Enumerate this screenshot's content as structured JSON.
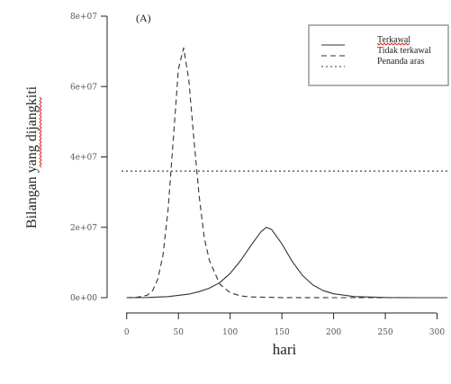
{
  "chart_data": {
    "type": "line",
    "panel_label": "(A)",
    "xlabel": "hari",
    "ylabel": "Bilangan yang dijangkiti",
    "xlim": [
      -5,
      310
    ],
    "ylim": [
      0,
      80000000
    ],
    "x_ticks": [
      0,
      50,
      100,
      150,
      200,
      250,
      300
    ],
    "x_tick_labels": [
      "0",
      "50",
      "100",
      "150",
      "200",
      "250",
      "300"
    ],
    "y_ticks": [
      0,
      20000000,
      40000000,
      60000000,
      80000000
    ],
    "y_tick_labels": [
      "0e+00",
      "2e+07",
      "4e+07",
      "6e+07",
      "8e+07"
    ],
    "legend_position": "top-right",
    "series": [
      {
        "name": "Terkawal",
        "style": "solid",
        "x": [
          0,
          20,
          40,
          60,
          70,
          80,
          90,
          100,
          110,
          120,
          130,
          135,
          140,
          150,
          160,
          170,
          180,
          190,
          200,
          220,
          250,
          280,
          310
        ],
        "values": [
          0,
          50000,
          300000,
          1000000,
          1700000,
          2700000,
          4300000,
          6900000,
          10500000,
          14800000,
          18800000,
          20000000,
          19400000,
          15300000,
          10300000,
          6300000,
          3600000,
          2000000,
          1100000,
          300000,
          50000,
          10000,
          0
        ]
      },
      {
        "name": "Tidak terkawal",
        "style": "dashed",
        "x": [
          0,
          10,
          20,
          25,
          30,
          35,
          40,
          45,
          50,
          55,
          60,
          65,
          70,
          75,
          80,
          90,
          100,
          110,
          120,
          150,
          200,
          250,
          310
        ],
        "values": [
          0,
          100000,
          700000,
          2000000,
          5200000,
          12000000,
          25000000,
          45000000,
          65000000,
          71000000,
          62000000,
          45000000,
          29000000,
          17000000,
          10500000,
          3800000,
          1400000,
          500000,
          200000,
          20000,
          0,
          0,
          0
        ]
      },
      {
        "name": "Penanda aras",
        "style": "dotted",
        "x": [
          -5,
          310
        ],
        "values": [
          36000000,
          36000000
        ]
      }
    ]
  }
}
